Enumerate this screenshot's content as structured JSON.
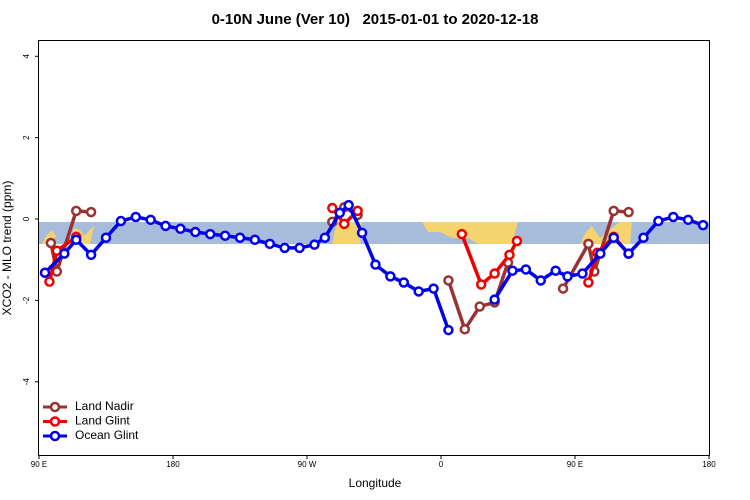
{
  "chart_data": {
    "type": "line",
    "title": "0-10N June (Ver 10)   2015-01-01 to 2020-12-18",
    "xlabel": "Longitude",
    "ylabel": "XCO2 - MLO trend (ppm)",
    "xlim": [
      90,
      540
    ],
    "ylim": [
      -5.8,
      4.4
    ],
    "xticks": [
      {
        "value": 90,
        "label": "90 E"
      },
      180,
      {
        "value": 270,
        "label": "90 W"
      },
      {
        "value": 360,
        "label": "0"
      },
      {
        "value": 450,
        "label": "90 E"
      },
      {
        "value": 540,
        "label": "180"
      }
    ],
    "yticks": [
      -4,
      -2,
      0,
      2,
      4
    ],
    "legend": "bottom-left",
    "series": [
      {
        "name": "Land Nadir",
        "color": "#993333",
        "x": [
          98,
          102,
          115,
          125,
          200,
          287,
          295,
          304,
          330,
          365,
          376,
          386,
          396,
          405,
          420,
          442,
          459,
          463,
          476,
          486
        ],
        "values": [
          -0.59,
          -1.29,
          0.2,
          0.17,
          null,
          -0.07,
          0.29,
          0.1,
          null,
          -1.51,
          -2.71,
          -2.15,
          -2.05,
          -1.07,
          null,
          -1.71,
          -0.61,
          -1.29,
          0.2,
          0.17
        ]
      },
      {
        "name": "Land Glint",
        "color": "#ee0000",
        "x": [
          97,
          102,
          115,
          200,
          287,
          295,
          304,
          340,
          374,
          387,
          396,
          406,
          411,
          430,
          459,
          465,
          476,
          486
        ],
        "values": [
          -1.54,
          -0.78,
          -0.44,
          null,
          0.27,
          -0.12,
          0.2,
          null,
          -0.37,
          -1.61,
          -1.34,
          -0.88,
          -0.54,
          null,
          -1.56,
          -0.83,
          -0.44,
          -0.85
        ]
      },
      {
        "name": "Ocean Glint",
        "color": "#0000ee",
        "x": [
          94,
          107,
          115,
          125,
          135,
          145,
          155,
          165,
          175,
          185,
          195,
          205,
          215,
          225,
          235,
          245,
          255,
          265,
          275,
          282,
          292,
          298,
          307,
          316,
          326,
          335,
          345,
          355,
          365,
          380,
          396,
          408,
          417,
          427,
          437,
          445,
          455,
          467,
          476,
          486,
          496,
          506,
          516,
          526,
          536
        ],
        "values": [
          -1.32,
          -0.85,
          -0.51,
          -0.88,
          -0.46,
          -0.05,
          0.05,
          -0.02,
          -0.17,
          -0.24,
          -0.32,
          -0.37,
          -0.41,
          -0.46,
          -0.51,
          -0.61,
          -0.71,
          -0.71,
          -0.63,
          -0.46,
          0.15,
          0.34,
          -0.34,
          -1.12,
          -1.41,
          -1.56,
          -1.78,
          -1.71,
          -2.73,
          null,
          -1.98,
          -1.27,
          -1.24,
          -1.51,
          -1.27,
          -1.41,
          -1.34,
          -0.85,
          -0.46,
          -0.85,
          -0.46,
          -0.05,
          0.05,
          -0.02,
          -0.15
        ]
      }
    ]
  }
}
